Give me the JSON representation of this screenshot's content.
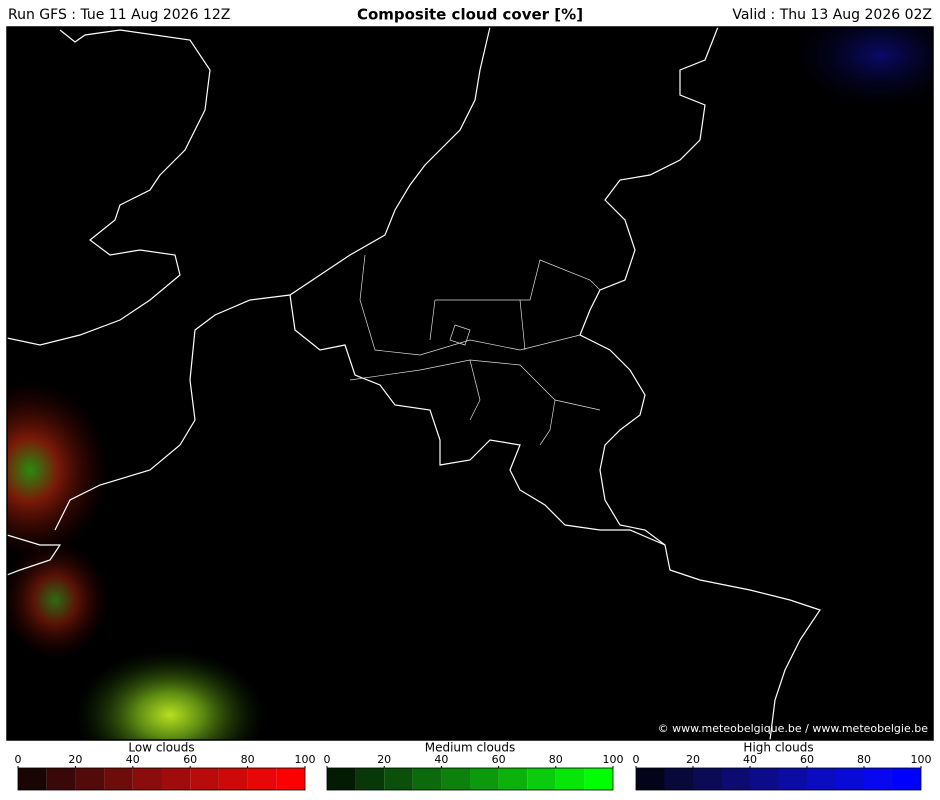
{
  "header": {
    "left": "Run GFS : Tue 11 Aug 2026 12Z",
    "title": "Composite cloud cover [%]",
    "right": "Valid : Thu 13 Aug 2026 02Z"
  },
  "map": {
    "credit": "© www.meteobelgique.be / www.meteobelgie.be"
  },
  "colorbars": [
    {
      "label": "Low clouds",
      "lim": [
        0,
        100
      ],
      "ticks": [
        0,
        20,
        40,
        60,
        80,
        100
      ],
      "colors": [
        "#1a0505",
        "#3a0808",
        "#520a0a",
        "#6e0b0b",
        "#8a0c0c",
        "#a00c0c",
        "#b80b0b",
        "#cc0a0a",
        "#e60808",
        "#ff0000"
      ]
    },
    {
      "label": "Medium clouds",
      "lim": [
        0,
        100
      ],
      "ticks": [
        0,
        20,
        40,
        60,
        80,
        100
      ],
      "colors": [
        "#031a03",
        "#083808",
        "#0a500a",
        "#0b6a0b",
        "#0c820c",
        "#0c9a0c",
        "#0bb20b",
        "#0acc0a",
        "#08e608",
        "#00ff00"
      ]
    },
    {
      "label": "High clouds",
      "lim": [
        0,
        100
      ],
      "ticks": [
        0,
        20,
        40,
        60,
        80,
        100
      ],
      "colors": [
        "#03031a",
        "#08083a",
        "#0a0a55",
        "#0b0b70",
        "#0c0c8a",
        "#0c0ca5",
        "#0b0bbf",
        "#0a0ad5",
        "#0808ee",
        "#0000ff"
      ]
    }
  ]
}
